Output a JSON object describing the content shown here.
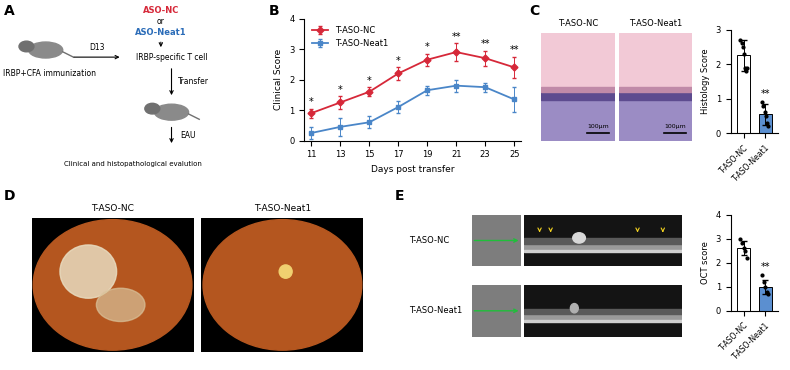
{
  "schematic": {
    "panel": "A",
    "treatment_1": "ASO-NC",
    "or": "or",
    "treatment_2": "ASO-Neat1",
    "day": "D13",
    "immunization": "IRBP+CFA immunization",
    "cells": "IRBP-specific T cell",
    "transfer": "Transfer",
    "disease": "EAU",
    "evaluation": "Clinical and histopathological evalution"
  },
  "images": [
    {
      "panel": "C",
      "labels": [
        "T-ASO-NC",
        "T-ASO-Neat1"
      ],
      "scale_bar": "100μm"
    },
    {
      "panel": "D",
      "labels": [
        "T-ASO-NC",
        "T-ASO-Neat1"
      ]
    },
    {
      "panel": "E",
      "labels": [
        "T-ASO-NC",
        "T-ASO-Neat1"
      ]
    }
  ],
  "chart_data": [
    {
      "panel": "B",
      "type": "line",
      "x": [
        11,
        13,
        15,
        17,
        19,
        21,
        23,
        25
      ],
      "xlim": [
        10.5,
        25.5
      ],
      "xticks": [
        11,
        13,
        15,
        17,
        19,
        21,
        23,
        25
      ],
      "ylim": [
        0,
        4
      ],
      "yticks": [
        0,
        1,
        2,
        3,
        4
      ],
      "xlabel": "Days post transfer",
      "ylabel": "Clinical Score",
      "legend": "upper left",
      "series": [
        {
          "name": "T-ASO-NC",
          "color": "#d62839",
          "marker": "diamond",
          "values": [
            0.9,
            1.25,
            1.6,
            2.2,
            2.65,
            2.9,
            2.7,
            2.4
          ],
          "error": [
            0.15,
            0.2,
            0.15,
            0.2,
            0.2,
            0.3,
            0.25,
            0.35
          ]
        },
        {
          "name": "T-ASO-Neat1",
          "color": "#4a86c8",
          "marker": "square",
          "values": [
            0.25,
            0.45,
            0.6,
            1.1,
            1.65,
            1.8,
            1.75,
            1.35
          ],
          "error": [
            0.2,
            0.3,
            0.2,
            0.2,
            0.15,
            0.2,
            0.15,
            0.4
          ]
        }
      ],
      "annotations": [
        {
          "x": 11,
          "text": "*"
        },
        {
          "x": 13,
          "text": "*"
        },
        {
          "x": 15,
          "text": "*"
        },
        {
          "x": 17,
          "text": "*"
        },
        {
          "x": 19,
          "text": "*"
        },
        {
          "x": 21,
          "text": "**"
        },
        {
          "x": 23,
          "text": "**"
        },
        {
          "x": 25,
          "text": "**"
        }
      ]
    },
    {
      "panel": "C",
      "type": "bar",
      "categories": [
        "T-ASO-NC",
        "T-ASO-Neat1"
      ],
      "values": [
        2.25,
        0.55
      ],
      "error": [
        0.45,
        0.3
      ],
      "points": [
        [
          2.7,
          2.6,
          2.5,
          2.3,
          1.9,
          1.8,
          1.9
        ],
        [
          0.9,
          0.8,
          0.6,
          0.5,
          0.3,
          0.2
        ]
      ],
      "colors": [
        "#ffffff",
        "#5b8fd0"
      ],
      "ylim": [
        0,
        3
      ],
      "yticks": [
        0,
        1,
        2,
        3
      ],
      "ylabel": "Histology Score",
      "annotations": [
        {
          "category": "T-ASO-Neat1",
          "text": "**"
        }
      ]
    },
    {
      "panel": "E",
      "type": "bar",
      "categories": [
        "T-ASO-NC",
        "T-ASO-Neat1"
      ],
      "values": [
        2.6,
        1.0
      ],
      "error": [
        0.3,
        0.3
      ],
      "points": [
        [
          3.0,
          2.8,
          2.6,
          2.5,
          2.2
        ],
        [
          1.5,
          1.2,
          1.0,
          0.8,
          0.7
        ]
      ],
      "colors": [
        "#ffffff",
        "#5b8fd0"
      ],
      "ylim": [
        0,
        4
      ],
      "yticks": [
        0,
        1,
        2,
        3,
        4
      ],
      "ylabel": "OCT score",
      "annotations": [
        {
          "category": "T-ASO-Neat1",
          "text": "**"
        }
      ]
    }
  ]
}
